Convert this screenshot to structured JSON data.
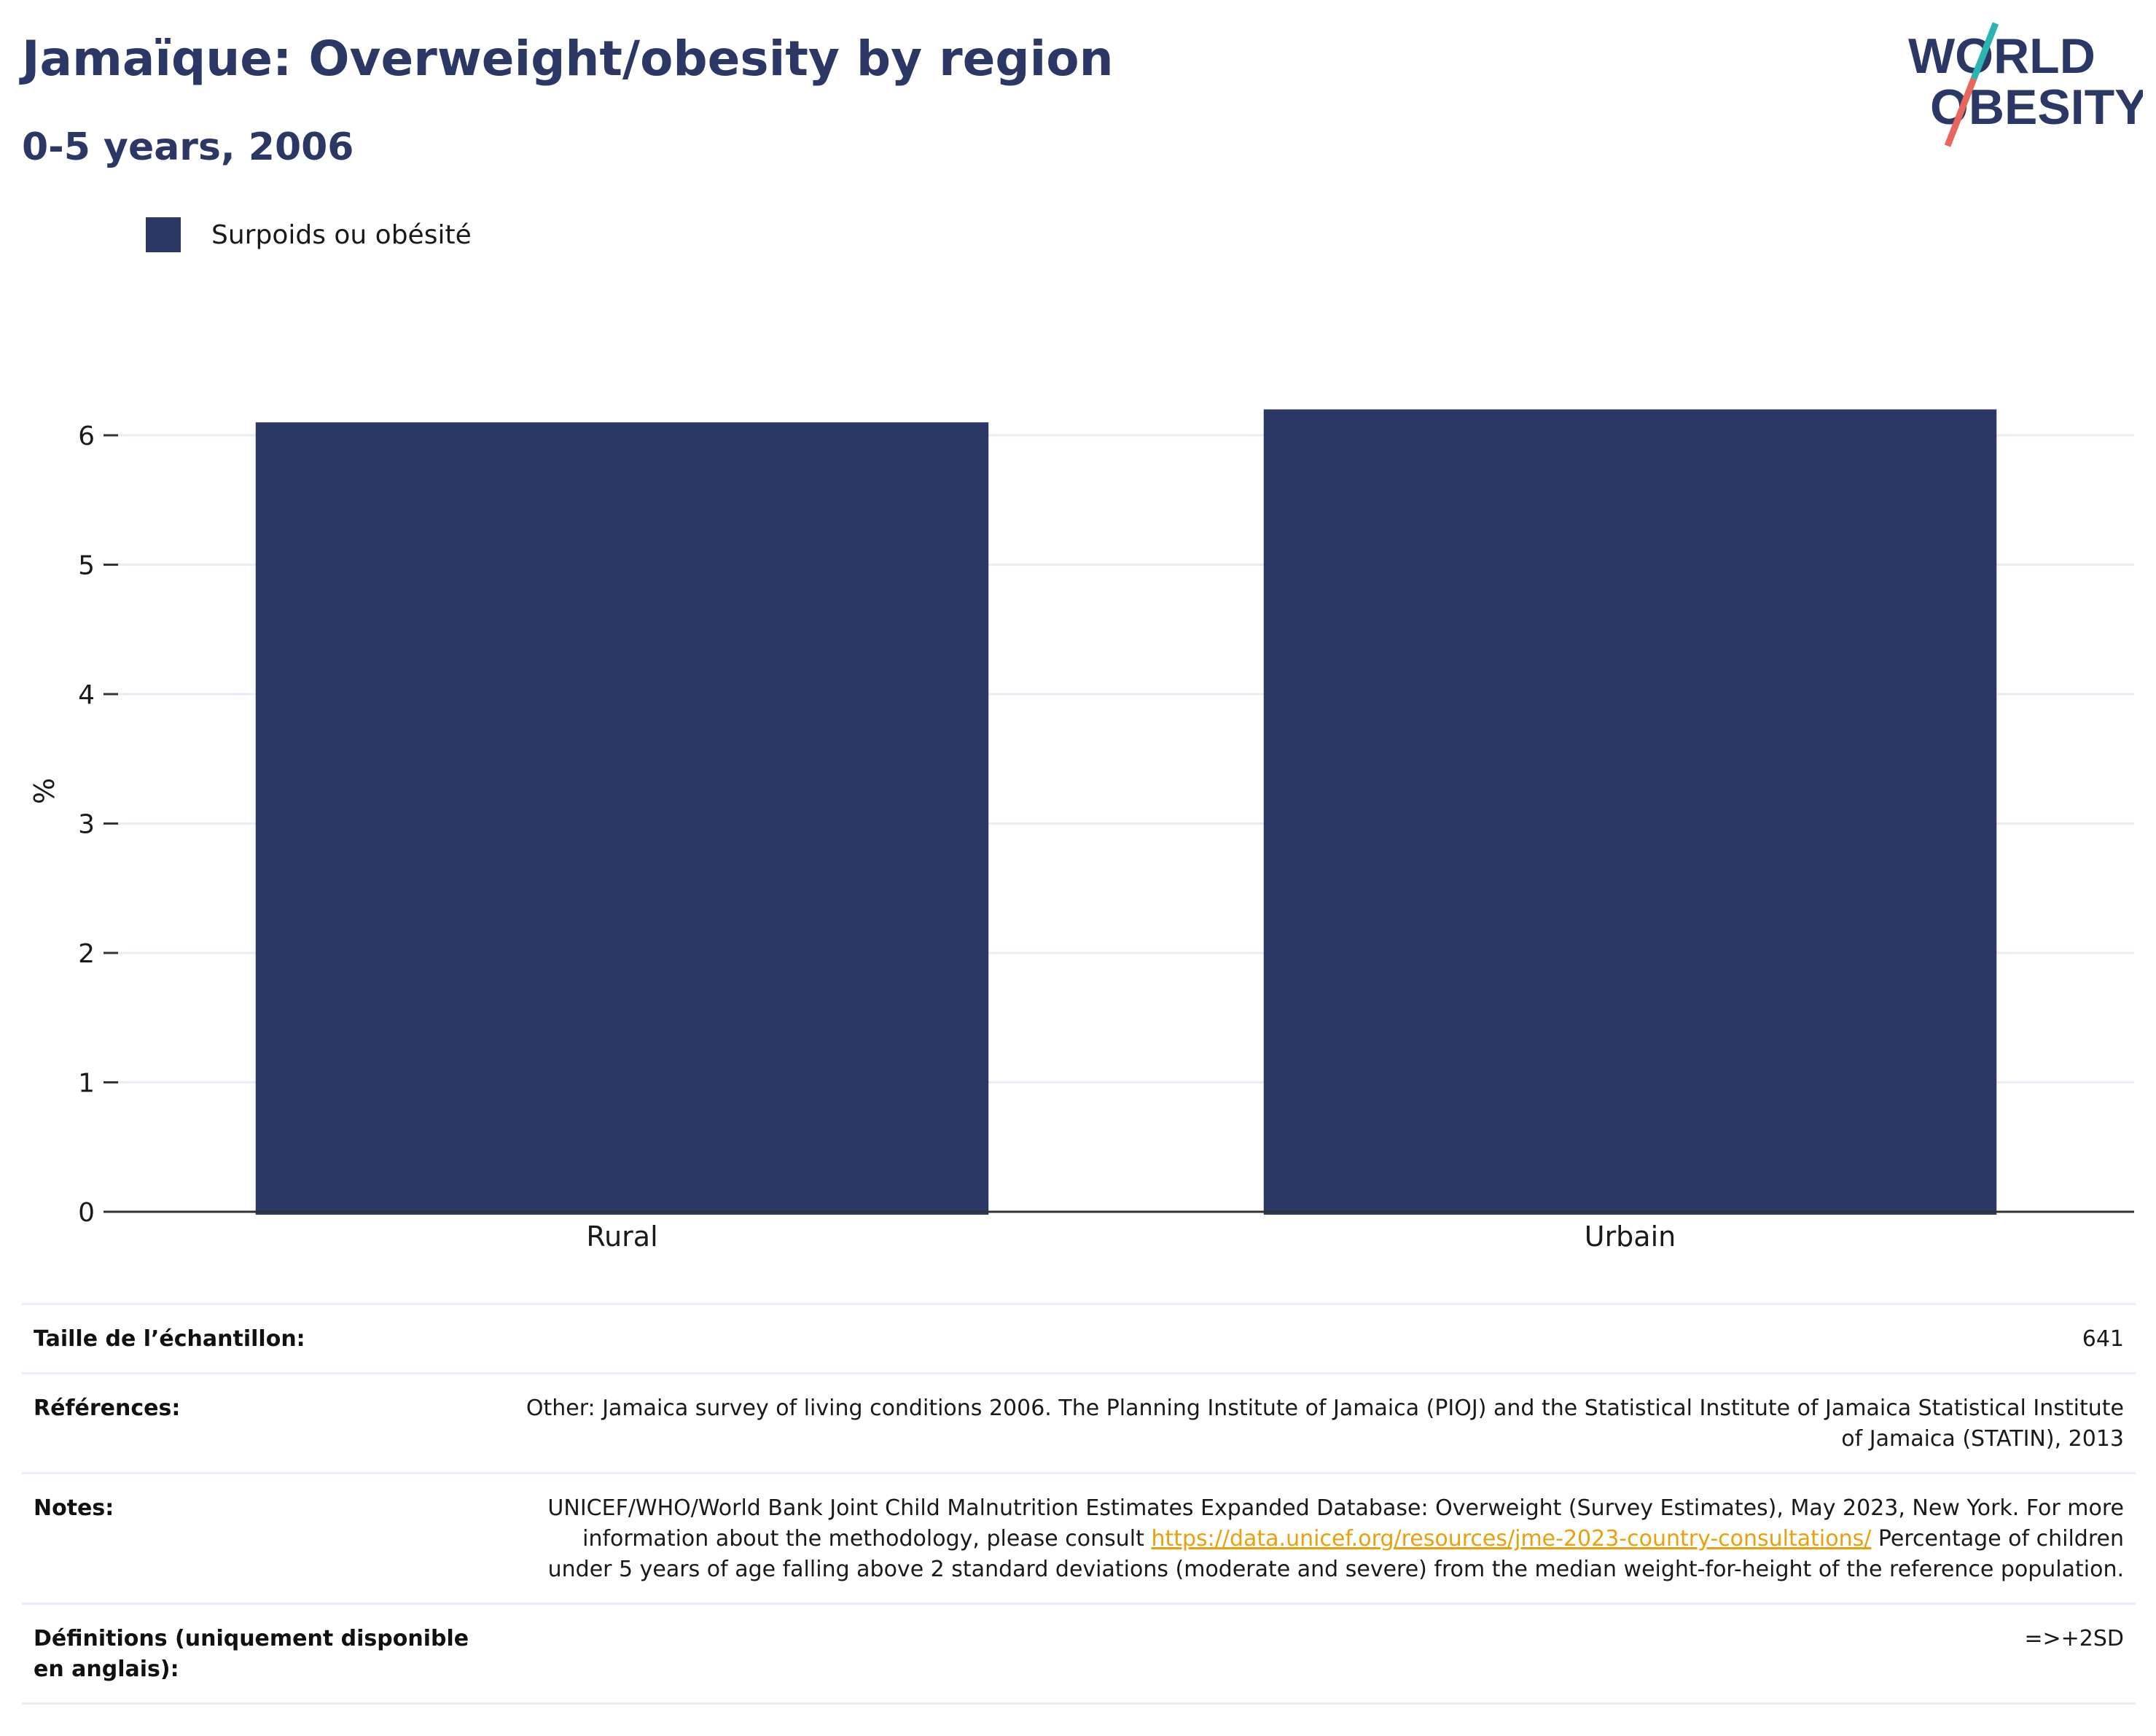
{
  "header": {
    "title": "Jamaïque: Overweight/obesity by region",
    "subtitle": "0-5 years, 2006"
  },
  "logo": {
    "line1": "WORLD",
    "line2": "OBESITY",
    "accent_colors": [
      "#2bb5b0",
      "#e8665a"
    ]
  },
  "legend": {
    "label": "Surpoids ou obésité",
    "color": "#2b3764"
  },
  "chart_data": {
    "type": "bar",
    "categories": [
      "Rural",
      "Urbain"
    ],
    "series": [
      {
        "name": "Surpoids ou obésité",
        "values": [
          6.1,
          6.2
        ],
        "color": "#2b3764"
      }
    ],
    "ylabel": "%",
    "xlabel": "",
    "ylim": [
      0,
      6.5
    ],
    "yticks": [
      0,
      1,
      2,
      3,
      4,
      5,
      6
    ],
    "grid": true,
    "legend_position": "top-left"
  },
  "info": {
    "sample_size_label": "Taille de l’échantillon:",
    "sample_size_value": "641",
    "references_label": "Références:",
    "references_value": "Other: Jamaica survey of living conditions 2006. The Planning Institute of Jamaica (PIOJ) and the Statistical Institute of Jamaica Statistical Institute of Jamaica (STATIN), 2013",
    "notes_label": "Notes:",
    "notes_before_link": "UNICEF/WHO/World Bank Joint Child Malnutrition Estimates Expanded Database: Overweight (Survey Estimates), May 2023, New York. For more information about the methodology, please consult ",
    "notes_link": "https://data.unicef.org/resources/jme-2023-country-consultations/",
    "notes_after_link": " Percentage of children under 5 years of age falling above 2 standard deviations (moderate and severe) from the median weight-for-height of the reference population.",
    "definitions_label": "Définitions (uniquement disponible en anglais):",
    "definitions_value": "=>+2SD"
  }
}
